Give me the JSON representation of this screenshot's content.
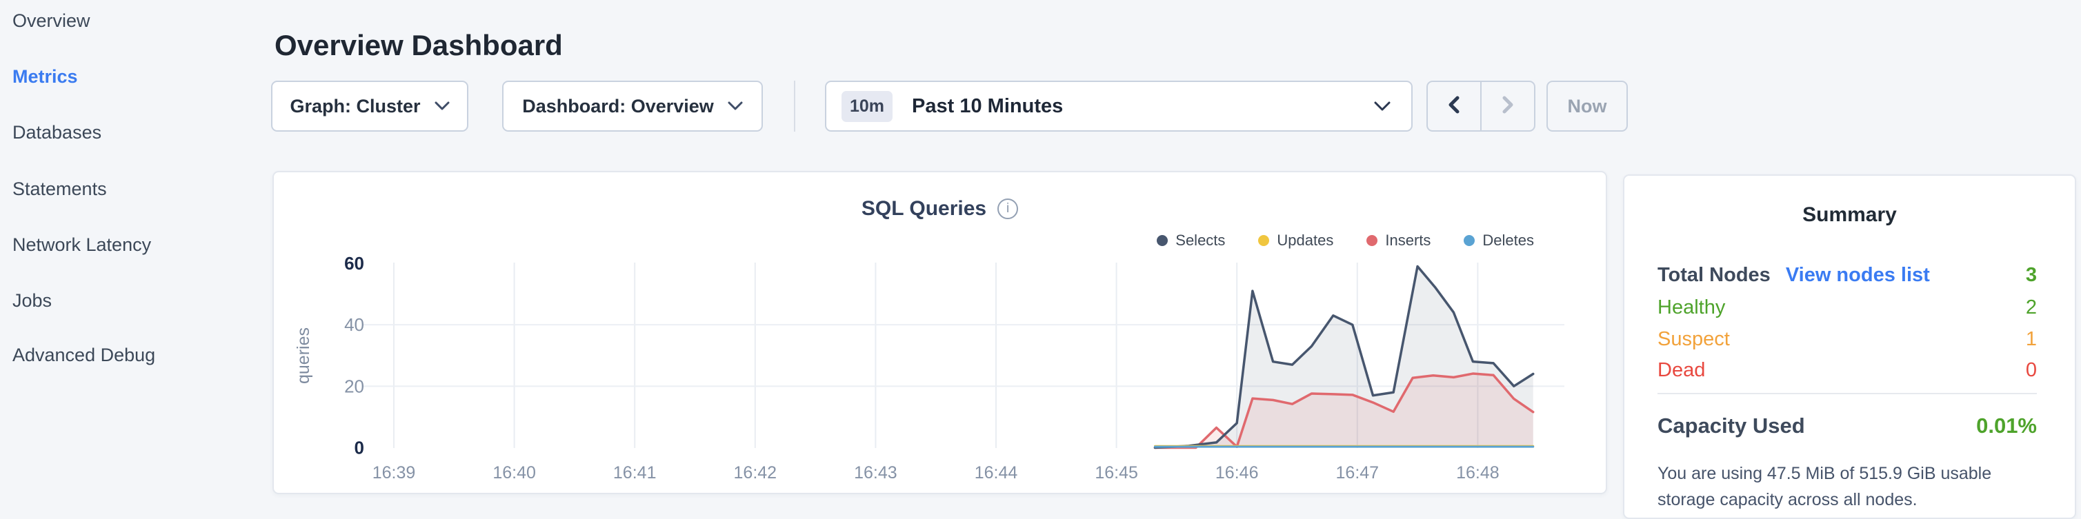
{
  "sidebar": {
    "items": [
      {
        "label": "Overview",
        "active": false
      },
      {
        "label": "Metrics",
        "active": true
      },
      {
        "label": "Databases",
        "active": false
      },
      {
        "label": "Statements",
        "active": false
      },
      {
        "label": "Network Latency",
        "active": false
      },
      {
        "label": "Jobs",
        "active": false
      },
      {
        "label": "Advanced Debug",
        "active": false
      }
    ],
    "active_color": "#3a7bf0"
  },
  "header": {
    "title": "Overview Dashboard"
  },
  "controls": {
    "graph_dropdown": {
      "label": "Graph: Cluster"
    },
    "dashboard_dropdown": {
      "label": "Dashboard: Overview"
    },
    "time_window": {
      "badge": "10m",
      "label": "Past 10 Minutes"
    },
    "now_label": "Now"
  },
  "chart_data": {
    "type": "area",
    "title": "SQL Queries",
    "ylabel": "queries",
    "ylim": [
      0,
      60
    ],
    "grid": true,
    "legend_position": "top-right",
    "yticks": [
      {
        "v": 0,
        "bold": true
      },
      {
        "v": 20,
        "bold": false
      },
      {
        "v": 40,
        "bold": false
      },
      {
        "v": 60,
        "bold": true
      }
    ],
    "xticks": [
      {
        "t": 0,
        "label": "16:39"
      },
      {
        "t": 1,
        "label": "16:40"
      },
      {
        "t": 2,
        "label": "16:41"
      },
      {
        "t": 3,
        "label": "16:42"
      },
      {
        "t": 4,
        "label": "16:43"
      },
      {
        "t": 5,
        "label": "16:44"
      },
      {
        "t": 6,
        "label": "16:45"
      },
      {
        "t": 7,
        "label": "16:46"
      },
      {
        "t": 8,
        "label": "16:47"
      },
      {
        "t": 9,
        "label": "16:48"
      }
    ],
    "x_unit": "minutes_after_16:39",
    "series": [
      {
        "name": "Selects",
        "color": "#47566e",
        "fill": "rgba(71,86,110,0.10)",
        "points": [
          [
            6.32,
            0
          ],
          [
            6.6,
            0.6
          ],
          [
            6.83,
            1.7
          ],
          [
            7.0,
            8
          ],
          [
            7.13,
            51
          ],
          [
            7.3,
            28
          ],
          [
            7.46,
            27
          ],
          [
            7.62,
            33
          ],
          [
            7.8,
            43
          ],
          [
            7.96,
            40
          ],
          [
            8.13,
            17
          ],
          [
            8.3,
            18
          ],
          [
            8.5,
            59
          ],
          [
            8.65,
            52
          ],
          [
            8.8,
            44
          ],
          [
            8.96,
            28
          ],
          [
            9.13,
            27.5
          ],
          [
            9.3,
            20
          ],
          [
            9.46,
            24
          ]
        ]
      },
      {
        "name": "Updates",
        "color": "#f0c63f",
        "fill": null,
        "points": [
          [
            6.32,
            0.5
          ],
          [
            9.46,
            0.5
          ]
        ]
      },
      {
        "name": "Inserts",
        "color": "#e0696e",
        "fill": "rgba(224,105,110,0.13)",
        "points": [
          [
            6.32,
            0
          ],
          [
            6.66,
            0
          ],
          [
            6.83,
            6.5
          ],
          [
            7.0,
            0.3
          ],
          [
            7.13,
            16
          ],
          [
            7.3,
            15.5
          ],
          [
            7.46,
            14.2
          ],
          [
            7.62,
            17.6
          ],
          [
            7.8,
            17.4
          ],
          [
            7.96,
            17.2
          ],
          [
            8.13,
            14.7
          ],
          [
            8.3,
            11.7
          ],
          [
            8.46,
            22.7
          ],
          [
            8.63,
            23.5
          ],
          [
            8.8,
            22.9
          ],
          [
            8.96,
            24.1
          ],
          [
            9.13,
            23.6
          ],
          [
            9.3,
            15.9
          ],
          [
            9.46,
            11.6
          ]
        ]
      },
      {
        "name": "Deletes",
        "color": "#5aa3d3",
        "fill": null,
        "points": [
          [
            6.32,
            0.3
          ],
          [
            9.46,
            0.3
          ]
        ]
      }
    ]
  },
  "summary": {
    "title": "Summary",
    "total": {
      "label": "Total Nodes",
      "link": "View nodes list",
      "value": "3",
      "color": "#4ea32b",
      "link_color": "#3a7bf2",
      "label_color": "#3e4a5c"
    },
    "healthy": {
      "label": "Healthy",
      "value": "2",
      "color": "#4ea32b"
    },
    "suspect": {
      "label": "Suspect",
      "value": "1",
      "color": "#f2a23b"
    },
    "dead": {
      "label": "Dead",
      "value": "0",
      "color": "#e8483f"
    },
    "capacity": {
      "label": "Capacity Used",
      "value": "0.01%",
      "color": "#4ea32b",
      "label_color": "#3e4a5c",
      "description": "You are using 47.5 MiB of 515.9 GiB usable storage capacity across all nodes."
    }
  }
}
